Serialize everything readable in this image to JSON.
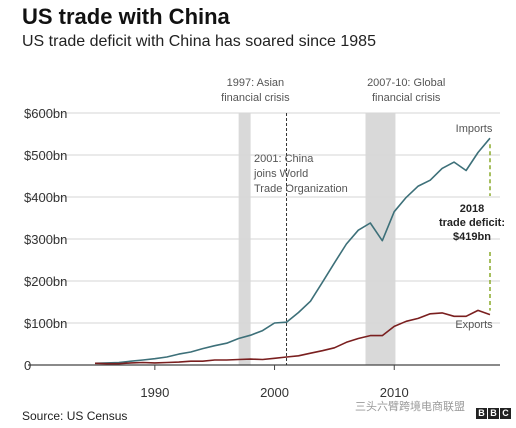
{
  "title": "US trade with China",
  "subtitle": "US trade deficit with China has soared since 1985",
  "source": "Source: US Census",
  "watermark": "三头六臂跨境电商联盟",
  "logo": [
    "B",
    "B",
    "C"
  ],
  "colors": {
    "imports": "#3d7079",
    "exports": "#7a1f1f",
    "shade": "#d9d9d9",
    "deficit_line": "#8aaa2a",
    "grid": "#d6d6d6"
  },
  "chart_data": {
    "type": "line",
    "title": "US trade with China",
    "subtitle": "US trade deficit with China has soared since 1985",
    "xlim": [
      1985,
      2018
    ],
    "ylim": [
      0,
      600
    ],
    "x_ticks": [
      1990,
      2000,
      2010
    ],
    "x_tick_labels": [
      "1990",
      "2000",
      "2010"
    ],
    "y_ticks": [
      0,
      100,
      200,
      300,
      400,
      500,
      600
    ],
    "y_tick_labels": [
      "0",
      "$100bn",
      "$200bn",
      "$300bn",
      "$400bn",
      "$500bn",
      "$600bn"
    ],
    "grid": "horizontal",
    "x": [
      1985,
      1986,
      1987,
      1988,
      1989,
      1990,
      1991,
      1992,
      1993,
      1994,
      1995,
      1996,
      1997,
      1998,
      1999,
      2000,
      2001,
      2002,
      2003,
      2004,
      2005,
      2006,
      2007,
      2008,
      2009,
      2010,
      2011,
      2012,
      2013,
      2014,
      2015,
      2016,
      2017,
      2018
    ],
    "series": [
      {
        "name": "Imports",
        "values": [
          4,
          5,
          6,
          9,
          12,
          15,
          19,
          26,
          31,
          39,
          46,
          52,
          63,
          71,
          82,
          100,
          102,
          125,
          152,
          197,
          243,
          288,
          321,
          338,
          296,
          365,
          399,
          426,
          440,
          468,
          483,
          463,
          506,
          540
        ]
      },
      {
        "name": "Exports",
        "values": [
          4,
          3,
          3,
          5,
          6,
          5,
          6,
          7,
          9,
          9,
          12,
          12,
          13,
          14,
          13,
          16,
          19,
          22,
          28,
          34,
          41,
          54,
          63,
          70,
          70,
          92,
          104,
          111,
          122,
          124,
          116,
          116,
          130,
          120
        ]
      }
    ],
    "shaded_periods": [
      {
        "label": "1997: Asian financial crisis",
        "lines": [
          "1997: Asian",
          "financial crisis"
        ],
        "from": 1997,
        "to": 1998
      },
      {
        "label": "2007-10: Global financial crisis",
        "lines": [
          "2007-10: Global",
          "financial crisis"
        ],
        "from": 2007.6,
        "to": 2010.1
      }
    ],
    "event_line": {
      "x": 2001,
      "lines": [
        "2001: China",
        "joins World",
        "Trade Organization"
      ]
    },
    "deficit_annotation": {
      "x": 2018,
      "lines": [
        "2018",
        "trade deficit:",
        "$419bn"
      ]
    }
  }
}
